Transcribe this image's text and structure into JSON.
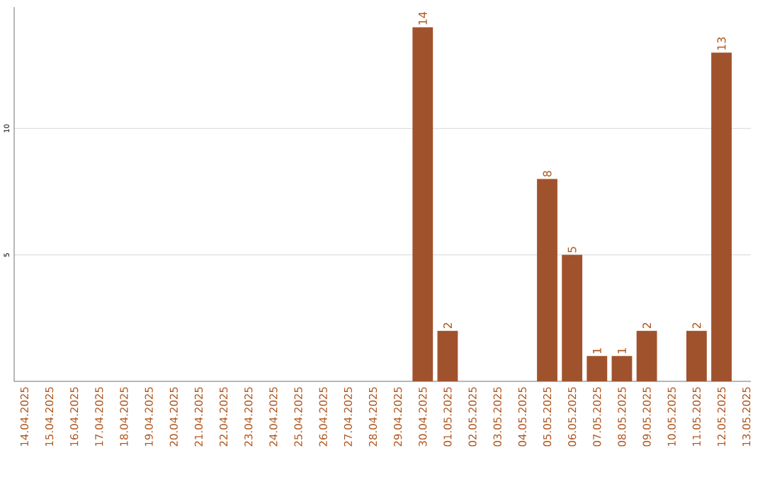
{
  "chart_data": {
    "type": "bar",
    "categories": [
      "14.04.2025",
      "15.04.2025",
      "16.04.2025",
      "17.04.2025",
      "18.04.2025",
      "19.04.2025",
      "20.04.2025",
      "21.04.2025",
      "22.04.2025",
      "23.04.2025",
      "24.04.2025",
      "25.04.2025",
      "26.04.2025",
      "27.04.2025",
      "28.04.2025",
      "29.04.2025",
      "30.04.2025",
      "01.05.2025",
      "02.05.2025",
      "03.05.2025",
      "04.05.2025",
      "05.05.2025",
      "06.05.2025",
      "07.05.2025",
      "08.05.2025",
      "09.05.2025",
      "10.05.2025",
      "11.05.2025",
      "12.05.2025",
      "13.05.2025"
    ],
    "values": [
      null,
      null,
      null,
      null,
      null,
      null,
      null,
      null,
      null,
      null,
      null,
      null,
      null,
      null,
      null,
      null,
      14,
      2,
      null,
      null,
      null,
      8,
      5,
      1,
      1,
      2,
      null,
      2,
      13,
      null
    ],
    "color": "#a0522d",
    "data_labels": true,
    "ylim": [
      0,
      14.8
    ],
    "yticks": [
      5,
      10
    ],
    "grid": "y"
  }
}
